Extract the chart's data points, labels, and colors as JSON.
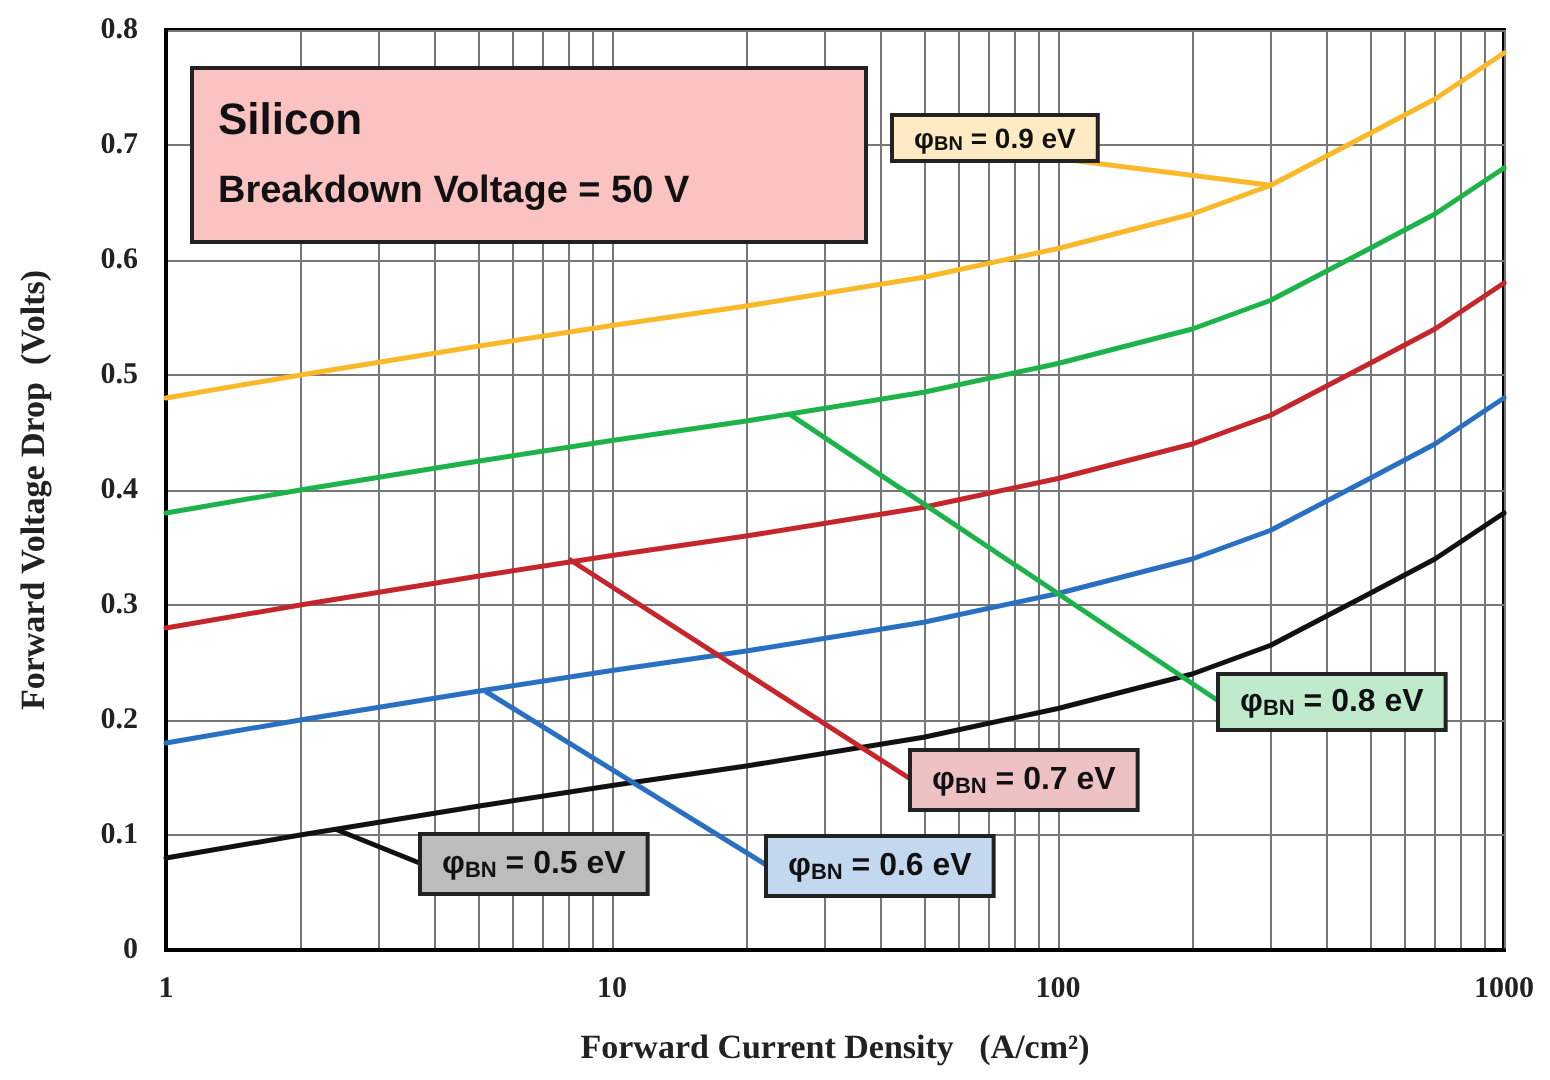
{
  "chart_data": {
    "type": "line",
    "xlabel": "Forward Current Density   (A/cm²)",
    "ylabel": "Forward Voltage Drop  (Volts)",
    "log": "x",
    "grid": true,
    "marker": "none",
    "line_style": "solid",
    "x": [
      1,
      2,
      5,
      10,
      20,
      50,
      100,
      200,
      300,
      500,
      700,
      1000
    ],
    "series": [
      {
        "color": "#fbb829",
        "values": [
          0.48,
          0.5,
          0.525,
          0.543,
          0.56,
          0.585,
          0.61,
          0.64,
          0.665,
          0.71,
          0.74,
          0.78
        ]
      },
      {
        "color": "#1db34a",
        "values": [
          0.38,
          0.4,
          0.425,
          0.443,
          0.46,
          0.485,
          0.51,
          0.54,
          0.565,
          0.61,
          0.64,
          0.68
        ]
      },
      {
        "color": "#c4262c",
        "values": [
          0.28,
          0.3,
          0.325,
          0.343,
          0.36,
          0.385,
          0.41,
          0.44,
          0.465,
          0.51,
          0.54,
          0.58
        ]
      },
      {
        "color": "#2a70c2",
        "values": [
          0.18,
          0.2,
          0.225,
          0.243,
          0.26,
          0.285,
          0.31,
          0.34,
          0.365,
          0.41,
          0.44,
          0.48
        ]
      },
      {
        "color": "#111111",
        "values": [
          0.08,
          0.1,
          0.125,
          0.143,
          0.16,
          0.185,
          0.21,
          0.24,
          0.265,
          0.31,
          0.34,
          0.38
        ]
      }
    ],
    "xlim": [
      1,
      1000
    ],
    "xticks": [
      1,
      {
        "value": 2,
        "label": null
      },
      {
        "value": 3,
        "label": null
      },
      {
        "value": 4,
        "label": null
      },
      {
        "value": 5,
        "label": null
      },
      {
        "value": 6,
        "label": null
      },
      {
        "value": 7,
        "label": null
      },
      {
        "value": 8,
        "label": null
      },
      {
        "value": 9,
        "label": null
      },
      10,
      {
        "value": 20,
        "label": null
      },
      {
        "value": 30,
        "label": null
      },
      {
        "value": 40,
        "label": null
      },
      {
        "value": 50,
        "label": null
      },
      {
        "value": 60,
        "label": null
      },
      {
        "value": 70,
        "label": null
      },
      {
        "value": 80,
        "label": null
      },
      {
        "value": 90,
        "label": null
      },
      100,
      {
        "value": 200,
        "label": null
      },
      {
        "value": 300,
        "label": null
      },
      {
        "value": 400,
        "label": null
      },
      {
        "value": 500,
        "label": null
      },
      {
        "value": 600,
        "label": null
      },
      {
        "value": 700,
        "label": null
      },
      {
        "value": 800,
        "label": null
      },
      {
        "value": 900,
        "label": null
      },
      1000
    ],
    "ylim": [
      0,
      0.8
    ],
    "yticks": [
      0,
      0.1,
      0.2,
      0.3,
      0.4,
      0.5,
      0.6,
      0.7,
      0.8
    ],
    "annotations": [
      "Silicon",
      "Breakdown Voltage = 50 V",
      {
        "text": "φ$_{BN}$ = 0.9 eV",
        "x": 300,
        "y": 0.665
      },
      {
        "text": "φ$_{BN}$ = 0.8 eV",
        "x": 25,
        "y": 0.466
      },
      {
        "text": "φ$_{BN}$ = 0.7 eV",
        "x": 8,
        "y": 0.34
      },
      {
        "text": "φ$_{BN}$ = 0.6 eV",
        "x": 5.2,
        "y": 0.225
      },
      {
        "text": "φ$_{BN}$ = 0.5 eV",
        "x": 2.4,
        "y": 0.105
      }
    ]
  }
}
